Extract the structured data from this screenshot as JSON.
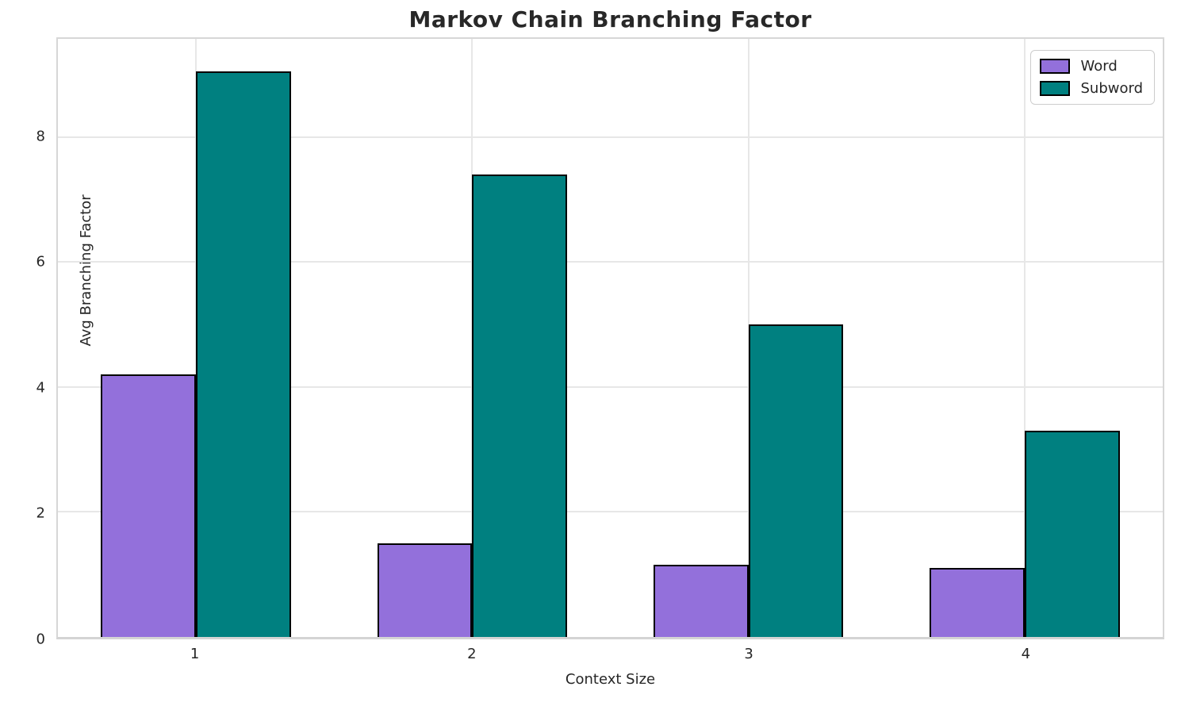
{
  "title": "Markov Chain Branching Factor",
  "chart_data": {
    "type": "bar",
    "title": "Markov Chain Branching Factor",
    "categories": [
      "1",
      "2",
      "3",
      "4"
    ],
    "series": [
      {
        "name": "Word",
        "color": "#9370DB",
        "values": [
          4.2,
          1.5,
          1.15,
          1.1
        ]
      },
      {
        "name": "Subword",
        "color": "#008080",
        "values": [
          9.05,
          7.4,
          5.0,
          3.3
        ]
      }
    ],
    "xlabel": "Context Size",
    "ylabel": "Avg Branching Factor",
    "ylim": [
      0,
      9.57
    ],
    "yticks": [
      0,
      2,
      4,
      6,
      8
    ],
    "grid": true,
    "grid_color": "#e7e7e7",
    "bar_edge_color": "#000000",
    "legend_position": "upper right",
    "bar_width_fraction": 0.086
  }
}
